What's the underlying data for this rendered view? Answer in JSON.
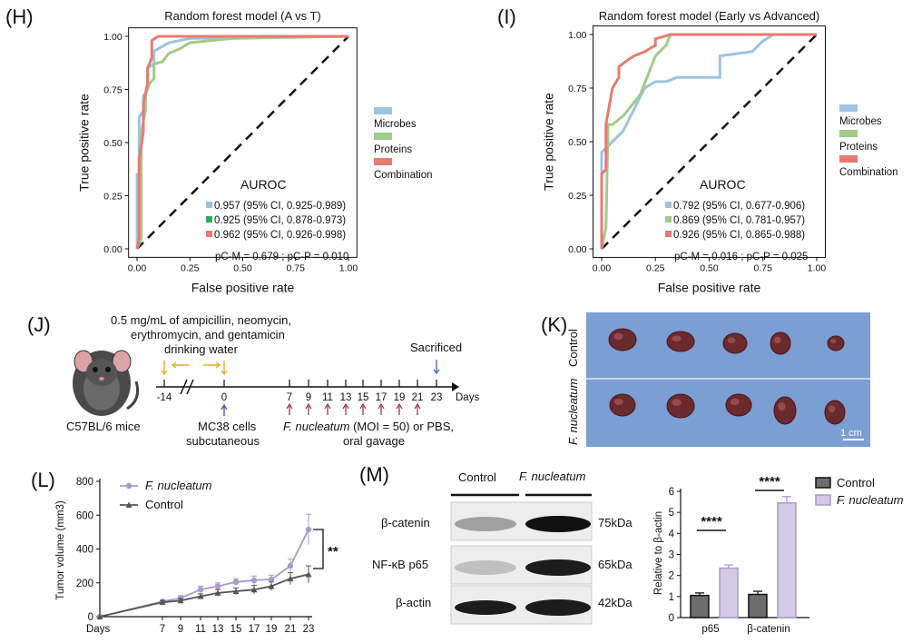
{
  "panels": {
    "H": "(H)",
    "I": "(I)",
    "J": "(J)",
    "K": "(K)",
    "L": "(L)",
    "M": "(M)"
  },
  "colors": {
    "microbes": "#9ec3e0",
    "proteins": "#9fcc88",
    "combination": "#e87a72",
    "purple": "#a89bcc",
    "gray": "#555555",
    "blue_bg": "#7b9ed3"
  },
  "chart_data": [
    {
      "id": "H",
      "type": "line",
      "title": "Random forest model (A vs T)",
      "xlabel": "False positive rate",
      "ylabel": "True positive rate",
      "xlim": [
        0,
        1
      ],
      "ylim": [
        0,
        1
      ],
      "xticks": [
        "0.00",
        "0.25",
        "0.50",
        "0.75",
        "1.00"
      ],
      "yticks": [
        "0.00",
        "0.25",
        "0.50",
        "0.75",
        "1.00"
      ],
      "legend": [
        "Microbes",
        "Proteins",
        "Combination"
      ],
      "auroc_title": "AUROC",
      "auroc": [
        "0.957 (95% CI, 0.925-0.989)",
        "0.925 (95% CI, 0.878-0.973)",
        "0.962 (95% CI, 0.926-0.998)"
      ],
      "pvals": "pC-M = 0.679 ; pC-P = 0.010",
      "series": [
        {
          "name": "Microbes",
          "x": [
            0,
            0,
            0.01,
            0.01,
            0.03,
            0.03,
            0.05,
            0.05,
            0.08,
            0.08,
            0.15,
            0.2,
            0.25,
            1.0
          ],
          "y": [
            0,
            0.35,
            0.35,
            0.62,
            0.65,
            0.72,
            0.75,
            0.85,
            0.87,
            0.93,
            0.97,
            0.98,
            0.99,
            1.0
          ]
        },
        {
          "name": "Proteins",
          "x": [
            0,
            0.02,
            0.02,
            0.04,
            0.04,
            0.06,
            0.08,
            0.08,
            0.12,
            0.15,
            0.2,
            0.25,
            0.45,
            1.0
          ],
          "y": [
            0,
            0.05,
            0.55,
            0.65,
            0.73,
            0.78,
            0.8,
            0.87,
            0.88,
            0.92,
            0.94,
            0.97,
            0.99,
            1.0
          ]
        },
        {
          "name": "Combination",
          "x": [
            0,
            0.01,
            0.01,
            0.03,
            0.03,
            0.05,
            0.05,
            0.07,
            0.07,
            0.1,
            1.0
          ],
          "y": [
            0,
            0.05,
            0.42,
            0.55,
            0.68,
            0.78,
            0.85,
            0.9,
            0.98,
            1.0,
            1.0
          ]
        }
      ]
    },
    {
      "id": "I",
      "type": "line",
      "title": "Random forest model (Early vs Advanced)",
      "xlabel": "False positive rate",
      "ylabel": "True positive rate",
      "xlim": [
        0,
        1
      ],
      "ylim": [
        0,
        1
      ],
      "xticks": [
        "0.00",
        "0.25",
        "0.50",
        "0.75",
        "1.00"
      ],
      "yticks": [
        "0.00",
        "0.25",
        "0.50",
        "0.75",
        "1.00"
      ],
      "legend": [
        "Microbes",
        "Proteins",
        "Combination"
      ],
      "auroc_title": "AUROC",
      "auroc": [
        "0.792 (95% CI, 0.677-0.906)",
        "0.869 (95% CI, 0.781-0.957)",
        "0.926 (95% CI, 0.865-0.988)"
      ],
      "pvals": "pC-M = 0.016 ; pC-P = 0.025",
      "series": [
        {
          "name": "Microbes",
          "x": [
            0,
            0,
            0.05,
            0.1,
            0.15,
            0.2,
            0.25,
            0.3,
            0.35,
            0.55,
            0.55,
            0.7,
            0.75,
            0.8,
            1.0
          ],
          "y": [
            0,
            0.45,
            0.5,
            0.55,
            0.65,
            0.75,
            0.78,
            0.78,
            0.8,
            0.8,
            0.9,
            0.92,
            0.97,
            1.0,
            1.0
          ]
        },
        {
          "name": "Proteins",
          "x": [
            0,
            0.02,
            0.03,
            0.05,
            0.1,
            0.18,
            0.25,
            0.3,
            0.32,
            0.4,
            1.0
          ],
          "y": [
            0,
            0.1,
            0.58,
            0.58,
            0.62,
            0.72,
            0.9,
            0.95,
            1.0,
            1.0,
            1.0
          ]
        },
        {
          "name": "Combination",
          "x": [
            0,
            0,
            0.02,
            0.02,
            0.05,
            0.08,
            0.08,
            0.12,
            0.15,
            0.2,
            0.25,
            0.25,
            0.32,
            1.0
          ],
          "y": [
            0,
            0.35,
            0.37,
            0.58,
            0.75,
            0.8,
            0.85,
            0.88,
            0.9,
            0.92,
            0.95,
            0.98,
            1.0,
            1.0
          ]
        }
      ]
    },
    {
      "id": "L",
      "type": "line",
      "xlabel": "Days",
      "ylabel": "Tumor volume (mm3)",
      "ylim": [
        0,
        800
      ],
      "yticks": [
        0,
        200,
        400,
        600,
        800
      ],
      "categories": [
        0,
        7,
        9,
        11,
        13,
        15,
        17,
        19,
        21,
        23
      ],
      "xticklabels": [
        "Days",
        "7",
        "9",
        "11",
        "13",
        "15",
        "17",
        "19",
        "21",
        "23"
      ],
      "series": [
        {
          "name": "F. nucleatum",
          "x": [
            0,
            7,
            9,
            11,
            13,
            15,
            17,
            19,
            21,
            23
          ],
          "values": [
            0,
            90,
            110,
            160,
            180,
            205,
            215,
            220,
            300,
            515
          ],
          "err": [
            0,
            10,
            15,
            20,
            20,
            20,
            25,
            25,
            40,
            90
          ]
        },
        {
          "name": "Control",
          "x": [
            0,
            7,
            9,
            11,
            13,
            15,
            17,
            19,
            21,
            23
          ],
          "values": [
            0,
            85,
            95,
            120,
            140,
            150,
            160,
            180,
            225,
            250
          ],
          "err": [
            0,
            10,
            12,
            15,
            20,
            20,
            25,
            25,
            35,
            50
          ]
        }
      ],
      "significance": "**"
    },
    {
      "id": "M-bar",
      "type": "bar",
      "ylabel": "Relative to β-actin",
      "ylim": [
        0,
        6
      ],
      "yticks": [
        0,
        1,
        2,
        3,
        4,
        5,
        6
      ],
      "categories": [
        "p65",
        "β-catenin"
      ],
      "series": [
        {
          "name": "Control",
          "values": [
            1.05,
            1.1
          ],
          "err": [
            0.12,
            0.15
          ]
        },
        {
          "name": "F. nucleatum",
          "values": [
            2.35,
            5.45
          ],
          "err": [
            0.15,
            0.3
          ]
        }
      ],
      "significance": [
        "****",
        "****"
      ]
    }
  ],
  "J": {
    "treatment": "0.5 mg/mL of ampicillin, neomycin, erythromycin, and gentamicin drinking water",
    "treatment_lines": [
      "0.5 mg/mL of ampicillin, neomycin,",
      "erythromycin, and gentamicin",
      "drinking water"
    ],
    "mouse_label": "C57BL/6 mice",
    "sacrificed": "Sacrificed",
    "ticks": [
      "-14",
      "0",
      "7",
      "9",
      "11",
      "13",
      "15",
      "17",
      "19",
      "21",
      "23"
    ],
    "days": "Days",
    "mc38": [
      "MC38 cells",
      "subcutaneous"
    ],
    "fn_line1_italic": "F. nucleatum",
    "fn_line1_rest": " (MOI = 50) or PBS,",
    "fn_line2": "oral gavage"
  },
  "K": {
    "control": "Control",
    "fn": "F. nucleatum",
    "scale": "1 cm"
  },
  "L_legend": {
    "fn": "F. nucleatum",
    "control": "Control",
    "sig": "**"
  },
  "M": {
    "col_control": "Control",
    "col_fn": "F. nucleatum",
    "rows": [
      "β-catenin",
      "NF-κB p65",
      "β-actin"
    ],
    "kda": [
      "75kDa",
      "65kDa",
      "42kDa"
    ],
    "legend_control": "Control",
    "legend_fn": "F. nucleatum"
  }
}
